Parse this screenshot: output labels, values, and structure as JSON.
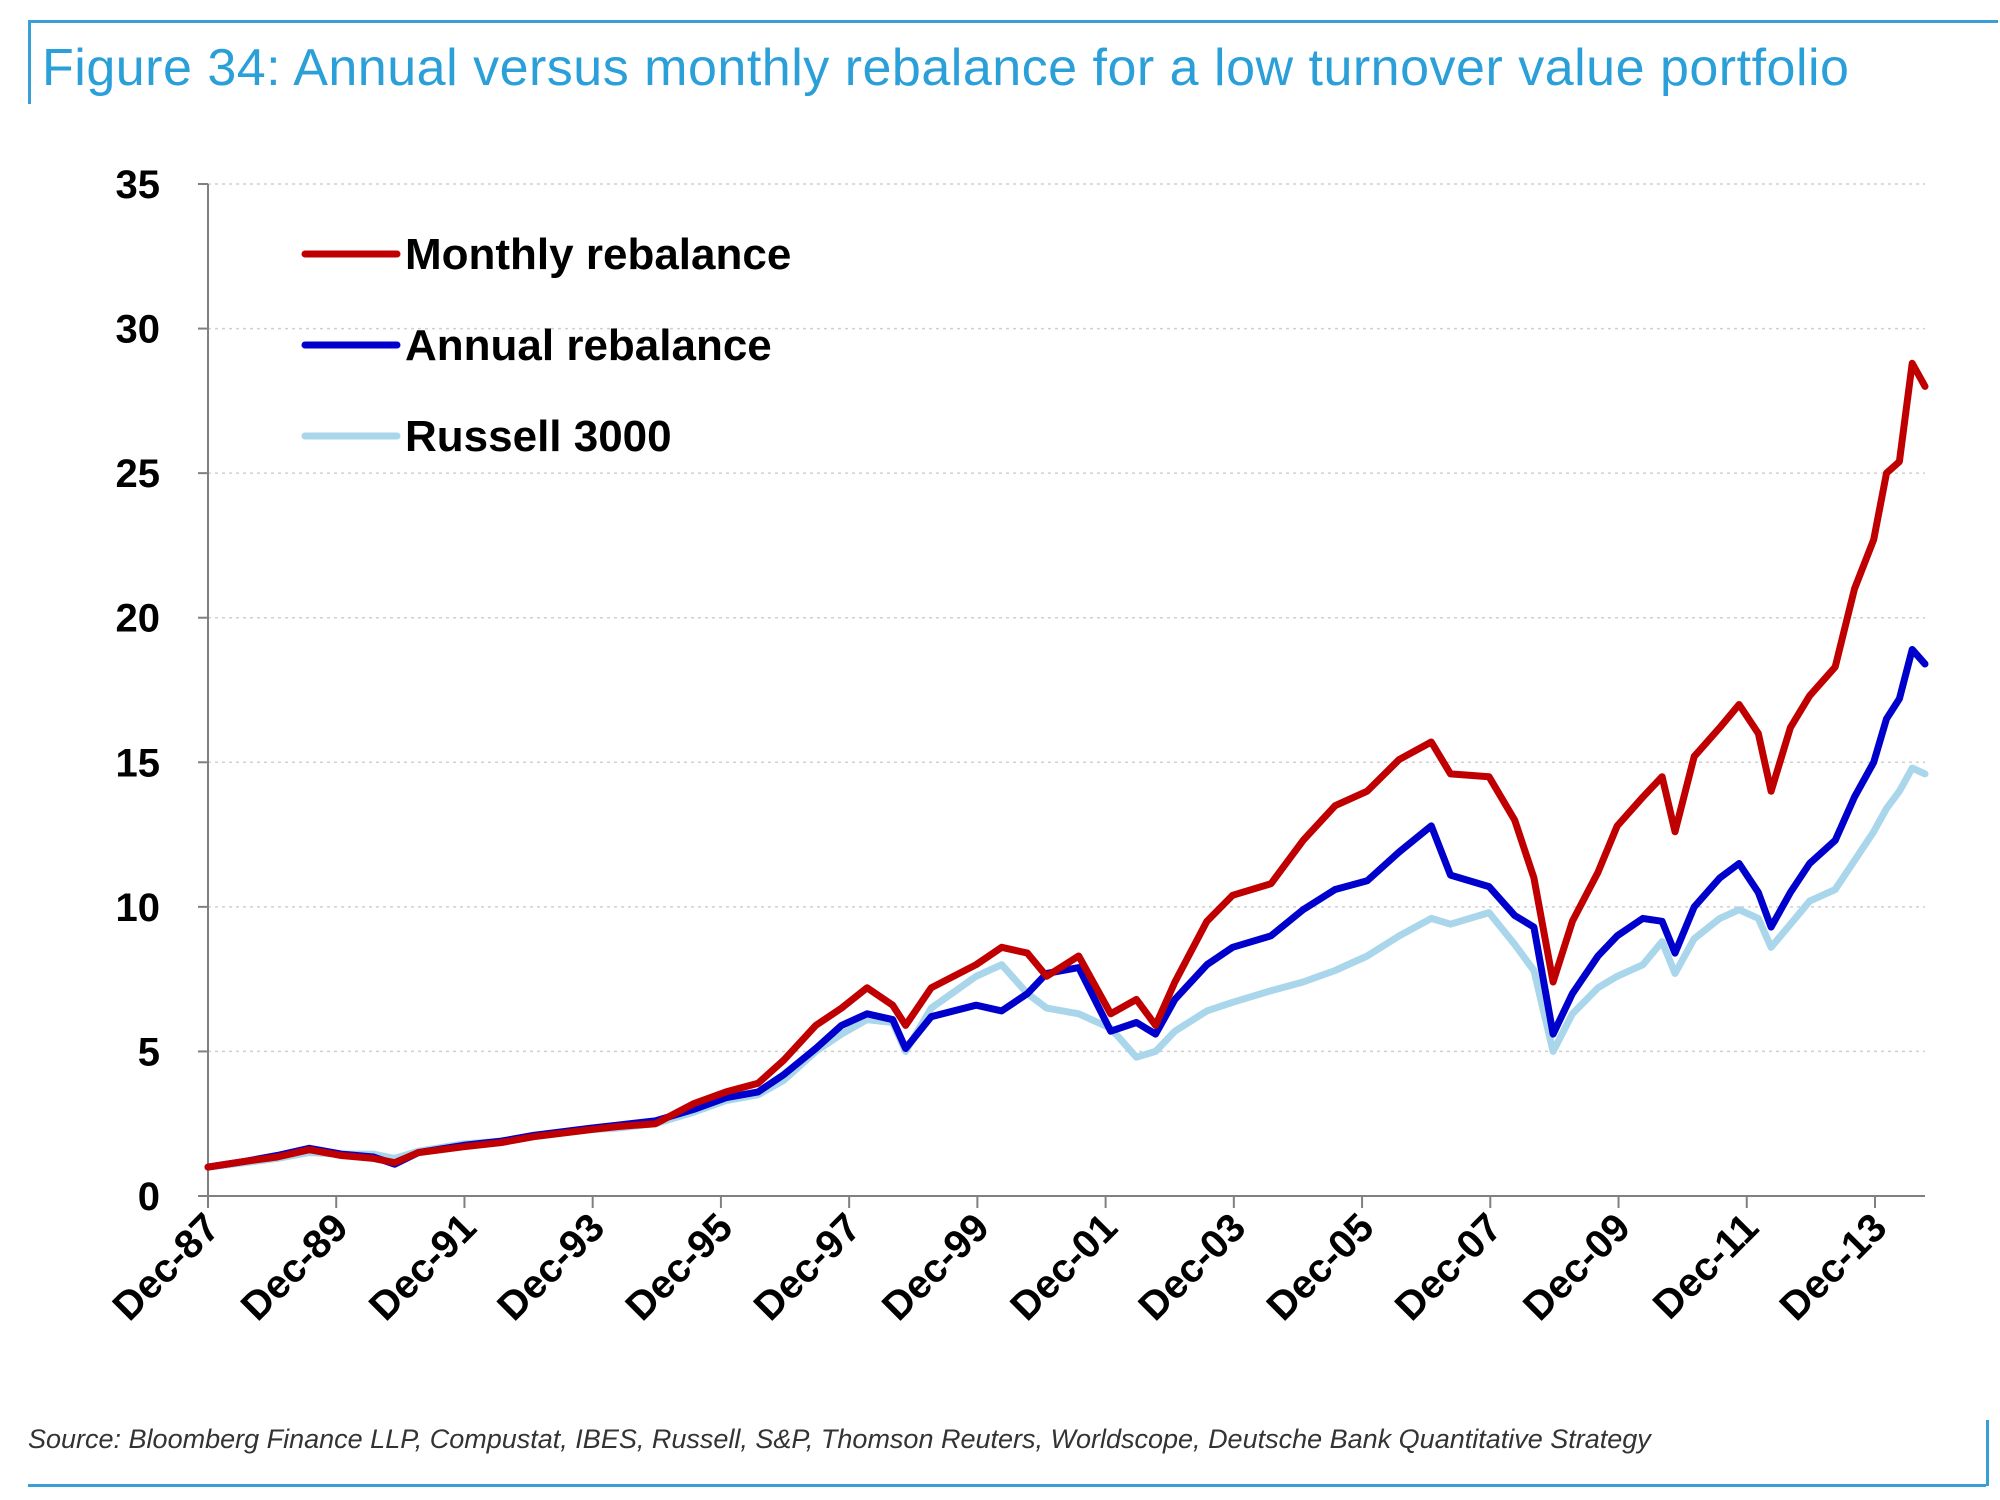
{
  "figure": {
    "title": "Figure 34: Annual versus monthly rebalance for a low turnover value portfolio",
    "source": "Source: Bloomberg Finance LLP, Compustat, IBES, Russell, S&P, Thomson Reuters, Worldscope, Deutsche Bank Quantitative Strategy"
  },
  "colors": {
    "accent": "#2a9fd8",
    "monthly": "#c00000",
    "annual": "#0000cc",
    "russell": "#a9d6ea"
  },
  "chart_data": {
    "type": "line",
    "title": "",
    "xlabel": "",
    "ylabel": "",
    "ylim": [
      0,
      35
    ],
    "xlim": [
      1987.92,
      2014.7
    ],
    "yticks": [
      0,
      5,
      10,
      15,
      20,
      25,
      30,
      35
    ],
    "xticks": [
      {
        "label": "Dec-87",
        "x": 1987.92
      },
      {
        "label": "Dec-89",
        "x": 1989.92
      },
      {
        "label": "Dec-91",
        "x": 1991.92
      },
      {
        "label": "Dec-93",
        "x": 1993.92
      },
      {
        "label": "Dec-95",
        "x": 1995.92
      },
      {
        "label": "Dec-97",
        "x": 1997.92
      },
      {
        "label": "Dec-99",
        "x": 1999.92
      },
      {
        "label": "Dec-01",
        "x": 2001.92
      },
      {
        "label": "Dec-03",
        "x": 2003.92
      },
      {
        "label": "Dec-05",
        "x": 2005.92
      },
      {
        "label": "Dec-07",
        "x": 2007.92
      },
      {
        "label": "Dec-09",
        "x": 2009.92
      },
      {
        "label": "Dec-11",
        "x": 2011.92
      },
      {
        "label": "Dec-13",
        "x": 2013.92
      }
    ],
    "grid": "horizontal-dotted",
    "legend": "top-left",
    "series": [
      {
        "name": "Monthly rebalance",
        "color": "#c00000",
        "points": [
          [
            1987.92,
            1.0
          ],
          [
            1988.5,
            1.2
          ],
          [
            1989.0,
            1.35
          ],
          [
            1989.5,
            1.6
          ],
          [
            1990.0,
            1.4
          ],
          [
            1990.5,
            1.3
          ],
          [
            1990.83,
            1.15
          ],
          [
            1991.2,
            1.5
          ],
          [
            1991.9,
            1.7
          ],
          [
            1992.5,
            1.85
          ],
          [
            1993.0,
            2.05
          ],
          [
            1993.9,
            2.3
          ],
          [
            1994.3,
            2.4
          ],
          [
            1994.9,
            2.5
          ],
          [
            1995.5,
            3.2
          ],
          [
            1996.0,
            3.6
          ],
          [
            1996.5,
            3.9
          ],
          [
            1996.9,
            4.7
          ],
          [
            1997.4,
            5.9
          ],
          [
            1997.8,
            6.5
          ],
          [
            1998.2,
            7.2
          ],
          [
            1998.6,
            6.6
          ],
          [
            1998.8,
            5.9
          ],
          [
            1999.2,
            7.2
          ],
          [
            1999.9,
            8.0
          ],
          [
            2000.3,
            8.6
          ],
          [
            2000.7,
            8.4
          ],
          [
            2001.0,
            7.6
          ],
          [
            2001.5,
            8.3
          ],
          [
            2002.0,
            6.3
          ],
          [
            2002.4,
            6.8
          ],
          [
            2002.7,
            5.9
          ],
          [
            2003.0,
            7.4
          ],
          [
            2003.5,
            9.5
          ],
          [
            2003.9,
            10.4
          ],
          [
            2004.5,
            10.8
          ],
          [
            2005.0,
            12.3
          ],
          [
            2005.5,
            13.5
          ],
          [
            2006.0,
            14.0
          ],
          [
            2006.5,
            15.1
          ],
          [
            2007.0,
            15.7
          ],
          [
            2007.3,
            14.6
          ],
          [
            2007.9,
            14.5
          ],
          [
            2008.3,
            13.0
          ],
          [
            2008.6,
            11.0
          ],
          [
            2008.9,
            7.4
          ],
          [
            2009.2,
            9.5
          ],
          [
            2009.6,
            11.2
          ],
          [
            2009.9,
            12.8
          ],
          [
            2010.3,
            13.8
          ],
          [
            2010.6,
            14.5
          ],
          [
            2010.8,
            12.6
          ],
          [
            2011.1,
            15.2
          ],
          [
            2011.5,
            16.2
          ],
          [
            2011.8,
            17.0
          ],
          [
            2012.1,
            16.0
          ],
          [
            2012.3,
            14.0
          ],
          [
            2012.6,
            16.2
          ],
          [
            2012.9,
            17.3
          ],
          [
            2013.3,
            18.3
          ],
          [
            2013.6,
            21.0
          ],
          [
            2013.9,
            22.7
          ],
          [
            2014.1,
            25.0
          ],
          [
            2014.3,
            25.4
          ],
          [
            2014.5,
            28.8
          ],
          [
            2014.7,
            28.0
          ]
        ]
      },
      {
        "name": "Annual rebalance",
        "color": "#0000cc",
        "points": [
          [
            1987.92,
            1.0
          ],
          [
            1988.5,
            1.2
          ],
          [
            1989.0,
            1.4
          ],
          [
            1989.5,
            1.65
          ],
          [
            1990.0,
            1.45
          ],
          [
            1990.5,
            1.35
          ],
          [
            1990.83,
            1.1
          ],
          [
            1991.2,
            1.5
          ],
          [
            1991.9,
            1.75
          ],
          [
            1992.5,
            1.9
          ],
          [
            1993.0,
            2.1
          ],
          [
            1993.9,
            2.35
          ],
          [
            1994.3,
            2.45
          ],
          [
            1994.9,
            2.6
          ],
          [
            1995.5,
            3.0
          ],
          [
            1996.0,
            3.4
          ],
          [
            1996.5,
            3.6
          ],
          [
            1996.9,
            4.2
          ],
          [
            1997.4,
            5.1
          ],
          [
            1997.8,
            5.9
          ],
          [
            1998.2,
            6.3
          ],
          [
            1998.6,
            6.1
          ],
          [
            1998.8,
            5.1
          ],
          [
            1999.2,
            6.2
          ],
          [
            1999.9,
            6.6
          ],
          [
            2000.3,
            6.4
          ],
          [
            2000.7,
            7.0
          ],
          [
            2001.0,
            7.7
          ],
          [
            2001.5,
            7.9
          ],
          [
            2002.0,
            5.7
          ],
          [
            2002.4,
            6.0
          ],
          [
            2002.7,
            5.6
          ],
          [
            2003.0,
            6.8
          ],
          [
            2003.5,
            8.0
          ],
          [
            2003.9,
            8.6
          ],
          [
            2004.5,
            9.0
          ],
          [
            2005.0,
            9.9
          ],
          [
            2005.5,
            10.6
          ],
          [
            2006.0,
            10.9
          ],
          [
            2006.5,
            11.9
          ],
          [
            2007.0,
            12.8
          ],
          [
            2007.3,
            11.1
          ],
          [
            2007.9,
            10.7
          ],
          [
            2008.3,
            9.7
          ],
          [
            2008.6,
            9.3
          ],
          [
            2008.9,
            5.6
          ],
          [
            2009.2,
            7.0
          ],
          [
            2009.6,
            8.3
          ],
          [
            2009.9,
            9.0
          ],
          [
            2010.3,
            9.6
          ],
          [
            2010.6,
            9.5
          ],
          [
            2010.8,
            8.4
          ],
          [
            2011.1,
            10.0
          ],
          [
            2011.5,
            11.0
          ],
          [
            2011.8,
            11.5
          ],
          [
            2012.1,
            10.5
          ],
          [
            2012.3,
            9.3
          ],
          [
            2012.6,
            10.5
          ],
          [
            2012.9,
            11.5
          ],
          [
            2013.3,
            12.3
          ],
          [
            2013.6,
            13.8
          ],
          [
            2013.9,
            15.0
          ],
          [
            2014.1,
            16.5
          ],
          [
            2014.3,
            17.2
          ],
          [
            2014.5,
            18.9
          ],
          [
            2014.7,
            18.4
          ]
        ]
      },
      {
        "name": "Russell 3000",
        "color": "#a9d6ea",
        "points": [
          [
            1987.92,
            1.0
          ],
          [
            1988.5,
            1.15
          ],
          [
            1989.0,
            1.3
          ],
          [
            1989.5,
            1.5
          ],
          [
            1990.0,
            1.45
          ],
          [
            1990.5,
            1.45
          ],
          [
            1990.83,
            1.3
          ],
          [
            1991.2,
            1.55
          ],
          [
            1991.9,
            1.8
          ],
          [
            1992.5,
            1.9
          ],
          [
            1993.0,
            2.05
          ],
          [
            1993.9,
            2.3
          ],
          [
            1994.3,
            2.35
          ],
          [
            1994.9,
            2.5
          ],
          [
            1995.5,
            2.9
          ],
          [
            1996.0,
            3.3
          ],
          [
            1996.5,
            3.5
          ],
          [
            1996.9,
            4.0
          ],
          [
            1997.4,
            5.0
          ],
          [
            1997.8,
            5.6
          ],
          [
            1998.2,
            6.1
          ],
          [
            1998.6,
            6.0
          ],
          [
            1998.8,
            5.0
          ],
          [
            1999.2,
            6.5
          ],
          [
            1999.9,
            7.6
          ],
          [
            2000.3,
            8.0
          ],
          [
            2000.7,
            7.0
          ],
          [
            2001.0,
            6.5
          ],
          [
            2001.5,
            6.3
          ],
          [
            2002.0,
            5.8
          ],
          [
            2002.4,
            4.8
          ],
          [
            2002.7,
            5.0
          ],
          [
            2003.0,
            5.7
          ],
          [
            2003.5,
            6.4
          ],
          [
            2003.9,
            6.7
          ],
          [
            2004.5,
            7.1
          ],
          [
            2005.0,
            7.4
          ],
          [
            2005.5,
            7.8
          ],
          [
            2006.0,
            8.3
          ],
          [
            2006.5,
            9.0
          ],
          [
            2007.0,
            9.6
          ],
          [
            2007.3,
            9.4
          ],
          [
            2007.9,
            9.8
          ],
          [
            2008.3,
            8.7
          ],
          [
            2008.6,
            7.8
          ],
          [
            2008.9,
            5.0
          ],
          [
            2009.2,
            6.3
          ],
          [
            2009.6,
            7.2
          ],
          [
            2009.9,
            7.6
          ],
          [
            2010.3,
            8.0
          ],
          [
            2010.6,
            8.8
          ],
          [
            2010.8,
            7.7
          ],
          [
            2011.1,
            8.9
          ],
          [
            2011.5,
            9.6
          ],
          [
            2011.8,
            9.9
          ],
          [
            2012.1,
            9.6
          ],
          [
            2012.3,
            8.6
          ],
          [
            2012.6,
            9.4
          ],
          [
            2012.9,
            10.2
          ],
          [
            2013.3,
            10.6
          ],
          [
            2013.6,
            11.6
          ],
          [
            2013.9,
            12.6
          ],
          [
            2014.1,
            13.4
          ],
          [
            2014.3,
            14.0
          ],
          [
            2014.5,
            14.8
          ],
          [
            2014.7,
            14.6
          ]
        ]
      }
    ]
  }
}
